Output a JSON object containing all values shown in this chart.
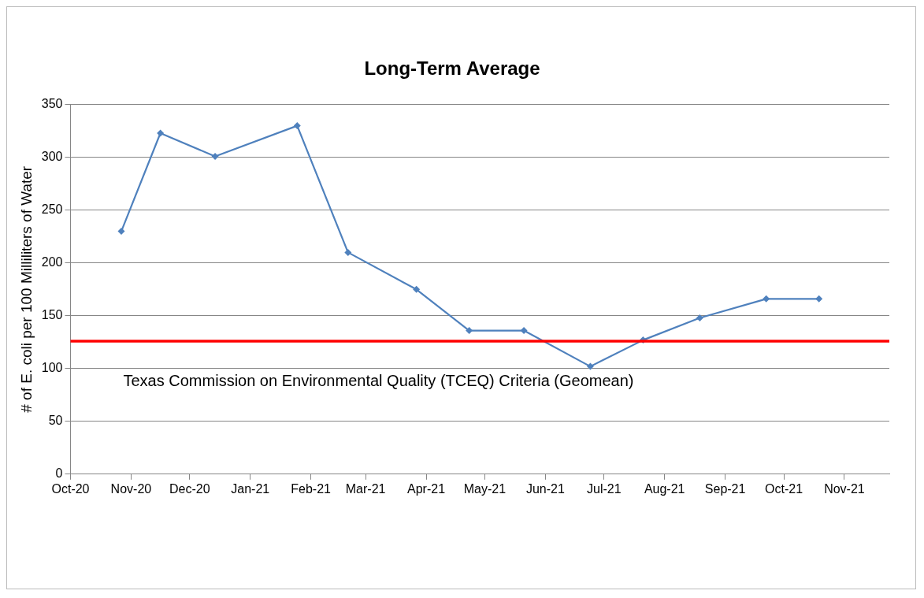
{
  "chart_data": {
    "type": "line",
    "title": "Long-Term Average",
    "ylabel": "# of E. coli per 100 Milliliters of Water",
    "x": [
      "2020-10-27",
      "2020-11-16",
      "2020-12-14",
      "2021-01-25",
      "2021-02-20",
      "2021-03-27",
      "2021-04-23",
      "2021-05-21",
      "2021-06-24",
      "2021-07-21",
      "2021-08-19",
      "2021-09-22",
      "2021-10-19"
    ],
    "series": [
      {
        "color": "#4f81bd",
        "values": [
          230,
          323,
          301,
          330,
          210,
          175,
          136,
          136,
          102,
          127,
          148,
          166,
          166
        ]
      }
    ],
    "xlim": [
      "2020-10-01",
      "2021-11-24"
    ],
    "xticks": [
      {
        "value": "2020-10-01",
        "label": "Oct-20"
      },
      {
        "value": "2020-11-01",
        "label": "Nov-20"
      },
      {
        "value": "2020-12-01",
        "label": "Dec-20"
      },
      {
        "value": "2021-01-01",
        "label": "Jan-21"
      },
      {
        "value": "2021-02-01",
        "label": "Feb-21"
      },
      {
        "value": "2021-03-01",
        "label": "Mar-21"
      },
      {
        "value": "2021-04-01",
        "label": "Apr-21"
      },
      {
        "value": "2021-05-01",
        "label": "May-21"
      },
      {
        "value": "2021-06-01",
        "label": "Jun-21"
      },
      {
        "value": "2021-07-01",
        "label": "Jul-21"
      },
      {
        "value": "2021-08-01",
        "label": "Aug-21"
      },
      {
        "value": "2021-09-01",
        "label": "Sep-21"
      },
      {
        "value": "2021-10-01",
        "label": "Oct-21"
      },
      {
        "value": "2021-11-01",
        "label": "Nov-21"
      }
    ],
    "ylim": [
      0,
      350
    ],
    "yticks": [
      0,
      50,
      100,
      150,
      200,
      250,
      300,
      350
    ],
    "ref_lines": [
      {
        "axis": "y",
        "value": 126,
        "label": "Texas Commission on Environmental Quality (TCEQ) Criteria (Geomean)",
        "color": "#ff0000"
      }
    ],
    "grid": "y",
    "legend": false,
    "marker": "diamond",
    "line_style": "solid"
  }
}
